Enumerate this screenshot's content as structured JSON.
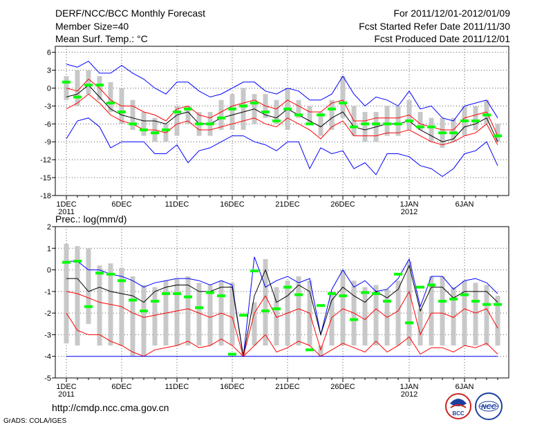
{
  "header": {
    "title": "DERF/NCC/BCC Monthly Forecast",
    "member_size": "Member Size=40",
    "variable": "Mean Surf. Temp.: °C",
    "period": "For 2011/12/01-2012/01/09",
    "started": "Fcst Started Refer Date 2011/11/30",
    "produced": "Fcst Produced Date 2011/12/01"
  },
  "footer": {
    "url": "http://cmdp.ncc.cma.gov.cn",
    "credit": "GrADS: COLA/IGES",
    "logo_left_text": "BCC",
    "logo_right_text": "NCC"
  },
  "colors": {
    "box": "#c8c8c8",
    "median": "#00ff00",
    "mean": "#000000",
    "inner": "#ff0000",
    "outer": "#0000ff",
    "grid": "#555555"
  },
  "chart_data": [
    {
      "type": "box-line",
      "title": "Mean Surf. Temp.: °C",
      "ylim": [
        -18,
        7
      ],
      "yticks": [
        6,
        3,
        0,
        -3,
        -6,
        -9,
        -12,
        -15,
        -18
      ],
      "xticks": [
        {
          "day": 1,
          "label": "1DEC",
          "sub": "2011"
        },
        {
          "day": 6,
          "label": "6DEC",
          "sub": ""
        },
        {
          "day": 11,
          "label": "11DEC",
          "sub": ""
        },
        {
          "day": 16,
          "label": "16DEC",
          "sub": ""
        },
        {
          "day": 21,
          "label": "21DEC",
          "sub": ""
        },
        {
          "day": 26,
          "label": "26DEC",
          "sub": ""
        },
        {
          "day": 32,
          "label": "1JAN",
          "sub": "2012"
        },
        {
          "day": 37,
          "label": "6JAN",
          "sub": ""
        }
      ],
      "days": [
        1,
        2,
        3,
        4,
        5,
        6,
        7,
        8,
        9,
        10,
        11,
        12,
        13,
        14,
        15,
        16,
        17,
        18,
        19,
        20,
        21,
        22,
        23,
        24,
        25,
        26,
        27,
        28,
        29,
        30,
        31,
        32,
        33,
        34,
        35,
        36,
        37,
        38,
        39,
        40
      ],
      "box_low": [
        -2,
        -3,
        -1,
        -2,
        -4,
        -6,
        -7,
        -8,
        -9,
        -9,
        -8,
        -6,
        -8,
        -8,
        -7,
        -7,
        -7,
        -6,
        -5,
        -6,
        -7,
        -5,
        -6,
        -8,
        -7,
        -5,
        -8,
        -9,
        -9,
        -8,
        -8,
        -7,
        -7,
        -9,
        -10,
        -9,
        -8,
        -7,
        -6,
        -9
      ],
      "box_high": [
        2,
        3,
        3,
        2,
        1,
        0,
        -2,
        -4,
        -5,
        -6,
        -3,
        -3,
        -4,
        -4,
        -2,
        -1,
        0,
        -1,
        -1,
        -2,
        0,
        -2,
        -3,
        -4,
        -2,
        2,
        -3,
        -4,
        -4,
        -3,
        -3,
        -2,
        -4,
        -5,
        -5,
        -5,
        -3,
        -3,
        -2,
        -6
      ],
      "median": [
        1.0,
        -1.5,
        0.5,
        0.5,
        -2.5,
        -4.0,
        -6.0,
        -7.0,
        -7.5,
        -7.0,
        -4.0,
        -3.5,
        -6.0,
        -6.0,
        -5.0,
        -3.5,
        -3.0,
        -2.5,
        -4.0,
        -5.5,
        -3.5,
        -4.5,
        -6.0,
        -4.5,
        -3.5,
        -2.5,
        -6.5,
        -6.0,
        -6.0,
        -6.0,
        -6.0,
        -5.5,
        -6.5,
        -6.5,
        -7.5,
        -7.5,
        -5.5,
        -5.5,
        -4.5,
        -8.0
      ],
      "series": [
        {
          "name": "max",
          "color": "#0000ff",
          "values": [
            4,
            3.5,
            4.5,
            2.5,
            2.5,
            3.8,
            2.5,
            1.5,
            0,
            -1,
            1,
            1,
            -0.5,
            -1.5,
            -1,
            0,
            1,
            1,
            -0.5,
            -1,
            0,
            -0.5,
            -2,
            -2,
            -1,
            2,
            -1,
            -3,
            -1.5,
            -2,
            -3,
            -0.5,
            -3.5,
            -3,
            -5,
            -5.5,
            -3,
            -2.5,
            -2,
            -5
          ]
        },
        {
          "name": "upper",
          "color": "#ff0000",
          "values": [
            0,
            -0.5,
            1.5,
            0,
            -2,
            -3,
            -3,
            -4,
            -4.5,
            -5.5,
            -3.5,
            -3,
            -4.5,
            -5,
            -4,
            -3,
            -2.5,
            -2,
            -3,
            -3.5,
            -2,
            -3,
            -4,
            -4,
            -2.5,
            -2,
            -5.5,
            -5.5,
            -5,
            -5,
            -5,
            -4.5,
            -6,
            -6.5,
            -7,
            -7,
            -5,
            -4.5,
            -4,
            -8
          ]
        },
        {
          "name": "mean",
          "color": "#000000",
          "values": [
            -1.5,
            -1,
            0.5,
            -1.5,
            -3.5,
            -4.5,
            -5,
            -5.5,
            -5.5,
            -6,
            -4.5,
            -4,
            -6,
            -6,
            -5,
            -4.5,
            -4,
            -3.5,
            -4.5,
            -5,
            -3.5,
            -4.5,
            -5.5,
            -6.5,
            -5,
            -4,
            -6.5,
            -7,
            -6.5,
            -6,
            -6,
            -5.5,
            -7,
            -8,
            -9,
            -8.5,
            -6.5,
            -6,
            -5,
            -9
          ]
        },
        {
          "name": "lower",
          "color": "#ff0000",
          "values": [
            -3.5,
            -2.5,
            -1,
            -2.5,
            -4.5,
            -5.5,
            -6,
            -7,
            -7,
            -7.5,
            -6,
            -5.5,
            -7,
            -7,
            -6.5,
            -6,
            -5.5,
            -5,
            -6,
            -6.5,
            -5,
            -6,
            -7,
            -8.5,
            -6.5,
            -5.5,
            -8,
            -8,
            -8,
            -7.5,
            -7.5,
            -7,
            -8,
            -9,
            -9.5,
            -9,
            -8,
            -7.5,
            -6,
            -9.5
          ]
        },
        {
          "name": "min",
          "color": "#0000ff",
          "values": [
            -8.5,
            -5.5,
            -5,
            -6.5,
            -10,
            -9,
            -9,
            -9,
            -11,
            -11,
            -9.5,
            -12.5,
            -10.5,
            -10,
            -9,
            -8,
            -8,
            -9,
            -9.5,
            -10.5,
            -9,
            -9,
            -13.5,
            -10,
            -11,
            -10.5,
            -13.5,
            -12.5,
            -14.5,
            -11,
            -11,
            -11.5,
            -13,
            -13.5,
            -14.8,
            -13.5,
            -11,
            -10.5,
            -9,
            -13
          ]
        }
      ]
    },
    {
      "type": "box-line",
      "title": "Prec.: log(mm/d)",
      "ylim": [
        -5,
        2
      ],
      "yticks": [
        2,
        1,
        0,
        -1,
        -2,
        -3,
        -4,
        -5
      ],
      "xticks": [
        {
          "day": 1,
          "label": "1DEC",
          "sub": "2011"
        },
        {
          "day": 6,
          "label": "6DEC",
          "sub": ""
        },
        {
          "day": 11,
          "label": "11DEC",
          "sub": ""
        },
        {
          "day": 16,
          "label": "16DEC",
          "sub": ""
        },
        {
          "day": 21,
          "label": "21DEC",
          "sub": ""
        },
        {
          "day": 26,
          "label": "26DEC",
          "sub": ""
        },
        {
          "day": 32,
          "label": "1JAN",
          "sub": "2012"
        },
        {
          "day": 37,
          "label": "6JAN",
          "sub": ""
        }
      ],
      "days": [
        1,
        2,
        3,
        4,
        5,
        6,
        7,
        8,
        9,
        10,
        11,
        12,
        13,
        14,
        15,
        16,
        17,
        18,
        19,
        20,
        21,
        22,
        23,
        24,
        25,
        26,
        27,
        28,
        29,
        30,
        31,
        32,
        33,
        34,
        35,
        36,
        37,
        38,
        39,
        40
      ],
      "box_low": [
        -3.4,
        -3.5,
        -2.5,
        -3.5,
        -3.5,
        -3.5,
        -4,
        -4,
        -3.5,
        -3.5,
        -3.5,
        -3.5,
        -3.5,
        -3.5,
        -3.5,
        -3.5,
        -4,
        -3.5,
        -3.5,
        -3.5,
        -3.5,
        -3.5,
        -3.5,
        -4,
        -3.5,
        -3.5,
        -3.5,
        -3.5,
        -3.5,
        -3.5,
        -3.5,
        -3.5,
        -3.5,
        -3.5,
        -3.5,
        -3.5,
        -3.5,
        -3.5,
        -3.5,
        -3.5
      ],
      "box_high": [
        1.2,
        1.1,
        1.0,
        0.2,
        0.3,
        0.1,
        -0.3,
        -0.7,
        -0.8,
        -0.5,
        -0.4,
        -0.3,
        -0.6,
        -0.7,
        -0.5,
        -0.6,
        -3.8,
        -1.5,
        0.5,
        -0.8,
        -0.5,
        -0.3,
        -0.5,
        -3.5,
        -1.0,
        0.0,
        -0.5,
        -0.8,
        -0.7,
        -0.9,
        -0.5,
        0.4,
        -1.8,
        -0.3,
        -0.3,
        -0.8,
        -0.5,
        -0.6,
        -0.7,
        -1.2
      ],
      "median": [
        0.35,
        0.4,
        -1.7,
        -0.15,
        -0.2,
        -0.5,
        -1.4,
        -1.9,
        -1.45,
        -1.1,
        -1.1,
        -1.25,
        -1.75,
        -1.05,
        -1.2,
        -3.9,
        -2.1,
        -0.05,
        -1.9,
        -1.8,
        -0.8,
        -1.15,
        -3.7,
        -1.65,
        -1.1,
        -1.2,
        -2.3,
        -1.05,
        -1.1,
        -1.45,
        -0.2,
        -2.45,
        -0.8,
        -0.7,
        -1.45,
        -1.35,
        -1.15,
        -1.45,
        -1.6,
        -1.6
      ],
      "series": [
        {
          "name": "max",
          "color": "#0000ff",
          "values": [
            0.4,
            0.4,
            0.0,
            0.0,
            -0.2,
            -0.3,
            -0.5,
            -0.8,
            -0.6,
            -0.5,
            -0.4,
            -0.4,
            -0.5,
            -0.7,
            -0.5,
            -0.7,
            -4.0,
            0.6,
            -0.8,
            -0.5,
            -0.3,
            -0.6,
            -0.4,
            -3.0,
            -0.9,
            0.0,
            -0.8,
            -0.5,
            -1.0,
            -0.9,
            -0.4,
            0.5,
            -1.7,
            -0.3,
            -0.3,
            -0.9,
            -0.5,
            -0.4,
            -0.6,
            -1.1
          ]
        },
        {
          "name": "mean",
          "color": "#000000",
          "values": [
            -0.4,
            -0.4,
            -1.0,
            -0.8,
            -1.0,
            -1.1,
            -1.2,
            -1.5,
            -1.0,
            -0.8,
            -0.7,
            -0.7,
            -1.0,
            -1.0,
            -0.8,
            -0.8,
            -4.0,
            -1.2,
            0.0,
            -1.5,
            -1.2,
            -0.7,
            -1.0,
            -3.0,
            -1.4,
            -0.8,
            -1.2,
            -1.5,
            -1.0,
            -1.3,
            -0.9,
            0.2,
            -1.9,
            -0.8,
            -0.8,
            -1.3,
            -1.0,
            -1.0,
            -1.0,
            -1.5
          ]
        },
        {
          "name": "upper",
          "color": "#ff0000",
          "values": [
            -1.0,
            -1.1,
            -1.3,
            -1.5,
            -1.6,
            -1.7,
            -2.0,
            -2.2,
            -2.1,
            -2.0,
            -1.9,
            -1.8,
            -2.0,
            -2.2,
            -2.0,
            -2.2,
            -4.0,
            -2.0,
            -1.2,
            -2.2,
            -2.0,
            -1.8,
            -2.0,
            -3.7,
            -2.2,
            -1.8,
            -2.0,
            -2.3,
            -1.8,
            -2.2,
            -1.9,
            -1.0,
            -3.0,
            -2.0,
            -2.0,
            -2.2,
            -1.8,
            -2.0,
            -1.8,
            -2.7
          ]
        },
        {
          "name": "lower",
          "color": "#ff0000",
          "values": [
            -2.0,
            -2.8,
            -3.0,
            -3.0,
            -3.3,
            -3.5,
            -3.8,
            -4.0,
            -3.7,
            -3.6,
            -3.5,
            -3.3,
            -3.6,
            -3.5,
            -3.2,
            -3.5,
            -4.0,
            -3.5,
            -3.0,
            -3.8,
            -3.6,
            -3.3,
            -3.5,
            -4.0,
            -3.7,
            -3.4,
            -3.6,
            -3.8,
            -3.3,
            -3.8,
            -3.5,
            -3.1,
            -3.9,
            -3.6,
            -3.6,
            -3.8,
            -3.5,
            -3.6,
            -3.4,
            -3.9
          ]
        },
        {
          "name": "min",
          "color": "#0000ff",
          "values": [
            -4,
            -4,
            -4,
            -4,
            -4,
            -4,
            -4,
            -4,
            -4,
            -4,
            -4,
            -4,
            -4,
            -4,
            -4,
            -4,
            -4,
            -4,
            -4,
            -4,
            -4,
            -4,
            -4,
            -4,
            -4,
            -4,
            -4,
            -4,
            -4,
            -4,
            -4,
            -4,
            -4,
            -4,
            -4,
            -4,
            -4,
            -4,
            -4,
            -4
          ]
        }
      ]
    }
  ]
}
